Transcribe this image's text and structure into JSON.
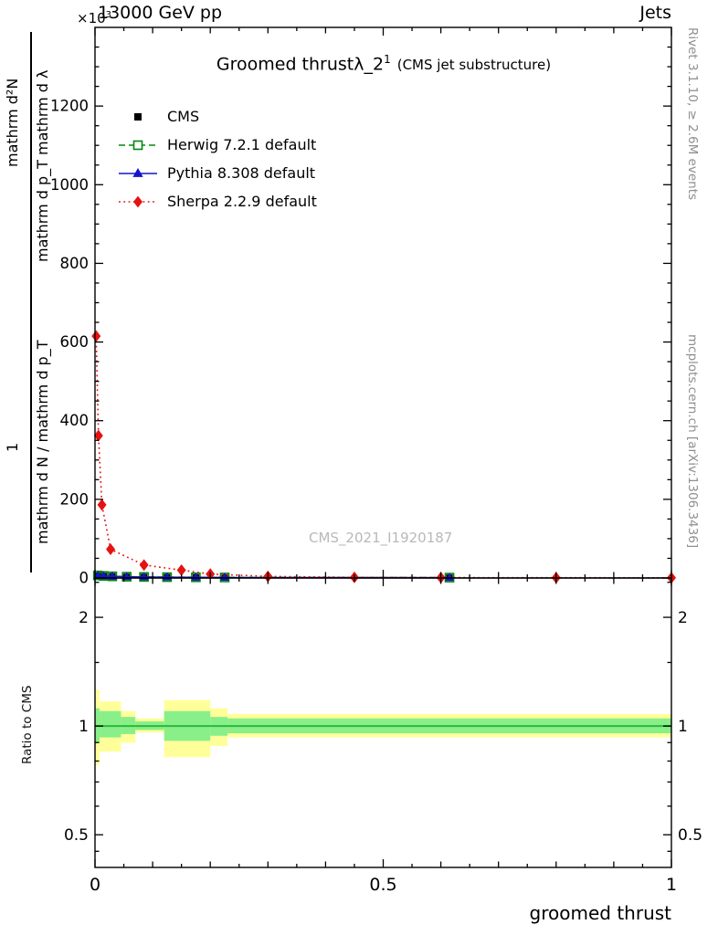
{
  "header": {
    "left": "13000 GeV pp",
    "right": "Jets"
  },
  "title": {
    "text": "Groomed thrust",
    "obs": "λ_2",
    "sup": "1",
    "note": "(CMS jet substructure)"
  },
  "legend": [
    {
      "label": "CMS",
      "color": "#000000",
      "line": "none",
      "marker": "square-filled",
      "marker_size": 8
    },
    {
      "label": "Herwig 7.2.1 default",
      "color": "#00890f",
      "line": "dashed",
      "marker": "square-open",
      "marker_size": 9
    },
    {
      "label": "Pythia 8.308 default",
      "color": "#1414c8",
      "line": "solid",
      "marker": "triangle-filled",
      "marker_size": 9
    },
    {
      "label": "Sherpa 2.2.9 default",
      "color": "#e51212",
      "line": "dotted",
      "marker": "diamond-filled",
      "marker_size": 9
    }
  ],
  "watermark": "CMS_2021_I1920187",
  "side_notes": {
    "right_top": "Rivet 3.1.10, ≥ 2.6M events",
    "right_bottom": "mcplots.cern.ch [arXiv:1306.3436]"
  },
  "axis_labels": {
    "x": "groomed thrust",
    "ratio_y": "Ratio to CMS",
    "y_numerator": "mathrm d²N",
    "y_denominator": "mathrm d p_T mathrm d λ",
    "y_prefix_one": "1",
    "y_prefix_den": "mathrm d N / mathrm d p_T",
    "scale_base": "×10",
    "scale_exp": "3"
  },
  "chart_data": {
    "type": "line",
    "title": "Groomed thrust λ_2^1 (CMS jet substructure)",
    "xlabel": "groomed thrust",
    "ylabel": "mathrm d²N / mathrm d p_T mathrm d λ (×10³), with prefix 1 / mathrm d N / mathrm d p_T",
    "xlim": [
      0,
      1
    ],
    "x_ticks": [
      0,
      0.5,
      1
    ],
    "x_tick_labels": [
      "0",
      "0.5",
      "1"
    ],
    "x_minor_step": 0.05,
    "y_unit": "×10³",
    "main": {
      "ylim": [
        0,
        1400
      ],
      "y_ticks": [
        0,
        200,
        400,
        600,
        800,
        1000,
        1200
      ],
      "y_tick_labels": [
        "0",
        "200",
        "400",
        "600",
        "800",
        "1000",
        "1200"
      ],
      "y_minor_step": 50,
      "series": [
        {
          "id": "cms",
          "name": "CMS",
          "color": "#000000",
          "line": "none",
          "marker": "square-filled",
          "marker_size": 7,
          "x": [
            0.005,
            0.015,
            0.03,
            0.055,
            0.085,
            0.125,
            0.175,
            0.225,
            0.615
          ],
          "y": [
            6,
            5,
            4,
            3,
            2.5,
            2,
            1.6,
            1.2,
            0.8
          ]
        },
        {
          "id": "herwig",
          "name": "Herwig 7.2.1 default",
          "color": "#00890f",
          "line": "dashed",
          "marker": "square-open",
          "marker_size": 9,
          "x": [
            0.005,
            0.015,
            0.03,
            0.055,
            0.085,
            0.125,
            0.175,
            0.225,
            0.615
          ],
          "y": [
            6.5,
            5.2,
            4.2,
            3.2,
            2.6,
            2.1,
            1.7,
            1.3,
            0.9
          ]
        },
        {
          "id": "pythia",
          "name": "Pythia 8.308 default",
          "color": "#1414c8",
          "line": "solid",
          "marker": "triangle-filled",
          "marker_size": 8,
          "x": [
            0.005,
            0.015,
            0.03,
            0.055,
            0.085,
            0.125,
            0.175,
            0.225,
            0.615
          ],
          "y": [
            6.2,
            5.1,
            4.1,
            3.1,
            2.5,
            2.0,
            1.6,
            1.2,
            0.8
          ]
        },
        {
          "id": "sherpa",
          "name": "Sherpa 2.2.9 default",
          "color": "#e51212",
          "line": "dotted",
          "marker": "diamond-filled",
          "marker_size": 9,
          "x": [
            0.002,
            0.006,
            0.012,
            0.027,
            0.085,
            0.15,
            0.2,
            0.3,
            0.45,
            0.6,
            0.8,
            1.0
          ],
          "y": [
            615,
            362,
            186,
            73,
            33,
            20,
            10,
            4,
            1.5,
            1,
            0.7,
            0.5
          ]
        }
      ]
    },
    "ratio": {
      "ylabel": "Ratio to CMS",
      "scale": "log",
      "ylim": [
        0.406,
        2.57
      ],
      "y_ticks": [
        0.5,
        1,
        2
      ],
      "y_tick_labels": [
        "0.5",
        "1",
        "2"
      ],
      "y_minor_ticks": [
        0.45,
        0.6,
        0.7,
        0.8,
        0.9,
        1.5,
        2.5
      ],
      "band_colors": {
        "outer": "#ffff99",
        "inner": "#89ef89"
      },
      "unity_line_color": "#2db83c",
      "bands": [
        {
          "x0": 0.0,
          "x1": 0.008,
          "yl": 0.78,
          "yh": 1.26,
          "gl": 0.9,
          "gh": 1.12
        },
        {
          "x0": 0.008,
          "x1": 0.045,
          "yl": 0.85,
          "yh": 1.17,
          "gl": 0.93,
          "gh": 1.1
        },
        {
          "x0": 0.045,
          "x1": 0.07,
          "yl": 0.9,
          "yh": 1.1,
          "gl": 0.95,
          "gh": 1.06
        },
        {
          "x0": 0.07,
          "x1": 0.12,
          "yl": 0.96,
          "yh": 1.05,
          "gl": 0.975,
          "gh": 1.03
        },
        {
          "x0": 0.12,
          "x1": 0.2,
          "yl": 0.82,
          "yh": 1.18,
          "gl": 0.91,
          "gh": 1.1
        },
        {
          "x0": 0.2,
          "x1": 0.23,
          "yl": 0.88,
          "yh": 1.12,
          "gl": 0.94,
          "gh": 1.06
        },
        {
          "x0": 0.23,
          "x1": 1.0,
          "yl": 0.93,
          "yh": 1.08,
          "gl": 0.955,
          "gh": 1.05
        }
      ]
    }
  }
}
